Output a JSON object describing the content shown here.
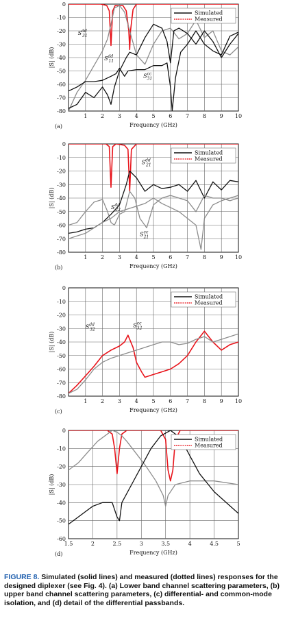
{
  "figure": {
    "caption_lead": "FIGURE 8.",
    "caption_body": "Simulated (solid lines) and measured (dotted lines) responses for the designed diplexer (see Fig. 4). (a) Lower band channel scattering parameters, (b) upper band channel scattering parameters, (c) differential- and common-mode isolation, and (d) detail of the differential passbands."
  },
  "colors": {
    "black": "#111111",
    "gray": "#8c8c8c",
    "red": "#e8141b",
    "grid": "#666666"
  },
  "chart_data": [
    {
      "type": "line",
      "panel_label": "(a)",
      "xlabel": "Frequency (GHz)",
      "ylabel": "|S| (dB)",
      "xlim": [
        0,
        10
      ],
      "ylim": [
        -80,
        0
      ],
      "xticks": [
        1,
        2,
        3,
        4,
        5,
        6,
        7,
        8,
        9,
        10
      ],
      "yticks": [
        0,
        -10,
        -20,
        -30,
        -40,
        -50,
        -60,
        -70,
        -80
      ],
      "grid": true,
      "legend": [
        "Simulated",
        "Measured"
      ],
      "legend_position": "top-right",
      "annotations": [
        {
          "text": "S",
          "sub": "31",
          "sup": "dd",
          "x": 0.55,
          "y": -23
        },
        {
          "text": "S",
          "sub": "11",
          "sup": "dd",
          "x": 2.1,
          "y": -42
        },
        {
          "text": "S",
          "sub": "31",
          "sup": "cc",
          "x": 4.4,
          "y": -55
        }
      ],
      "series": [
        {
          "color": "red",
          "style": "solid",
          "x": [
            0,
            1.9,
            2.25,
            2.4,
            2.5,
            2.6,
            2.75,
            3.2,
            3.4,
            3.55,
            3.6,
            3.65,
            3.8,
            4,
            10
          ],
          "y": [
            0,
            0,
            -1,
            -5,
            -31,
            -5,
            -1,
            -1,
            -5,
            -20,
            -34,
            -20,
            -4,
            0,
            0
          ]
        },
        {
          "color": "gray",
          "style": "solid",
          "x": [
            0,
            0.5,
            1,
            1.5,
            2,
            2.3,
            2.5,
            2.7,
            3,
            3.3,
            3.6,
            4,
            4.5,
            5,
            5.5,
            6,
            6.5,
            7,
            7.5,
            8,
            8.5,
            9,
            9.5,
            10
          ],
          "y": [
            -80,
            -66,
            -57,
            -46,
            -35,
            -26,
            -15,
            -3,
            -1,
            -6,
            -20,
            -38,
            -45,
            -30,
            -20,
            -18,
            -26,
            -22,
            -12,
            -25,
            -20,
            -35,
            -38,
            -32
          ]
        },
        {
          "color": "black",
          "style": "solid",
          "x": [
            0,
            0.5,
            1,
            1.5,
            2,
            2.3,
            2.5,
            2.7,
            3,
            3.4,
            3.6,
            4,
            4.5,
            5,
            5.5,
            5.8,
            6,
            6.2,
            6.5,
            7,
            7.5,
            8,
            8.5,
            9,
            9.5,
            10
          ],
          "y": [
            -78,
            -75,
            -66,
            -70,
            -62,
            -68,
            -75,
            -62,
            -50,
            -40,
            -36,
            -38,
            -25,
            -15,
            -18,
            -28,
            -44,
            -20,
            -18,
            -22,
            -30,
            -20,
            -28,
            -40,
            -30,
            -22
          ]
        },
        {
          "color": "black",
          "style": "solid",
          "x": [
            0,
            0.5,
            1,
            1.5,
            2,
            2.5,
            2.8,
            3,
            3.3,
            3.5,
            4,
            4.5,
            5,
            5.5,
            5.8,
            6,
            6.1,
            6.3,
            6.6,
            7,
            7.5,
            8,
            8.5,
            9,
            9.5,
            10
          ],
          "y": [
            -65,
            -62,
            -58,
            -58,
            -57,
            -54,
            -52,
            -48,
            -54,
            -50,
            -49,
            -49,
            -46,
            -46,
            -44,
            -62,
            -80,
            -55,
            -36,
            -30,
            -20,
            -30,
            -35,
            -38,
            -24,
            -21
          ]
        }
      ]
    },
    {
      "type": "line",
      "panel_label": "(b)",
      "xlabel": "Frequency (GHz)",
      "ylabel": "|S| (dB)",
      "xlim": [
        0,
        10
      ],
      "ylim": [
        -80,
        0
      ],
      "xticks": [
        1,
        2,
        3,
        4,
        5,
        6,
        7,
        8,
        9,
        10
      ],
      "yticks": [
        0,
        -10,
        -20,
        -30,
        -40,
        -50,
        -60,
        -70,
        -80
      ],
      "grid": true,
      "legend": [
        "Simulated",
        "Measured"
      ],
      "legend_position": "top-right",
      "annotations": [
        {
          "text": "S",
          "sub": "21",
          "sup": "dd",
          "x": 4.3,
          "y": -15
        },
        {
          "text": "S",
          "sub": "22",
          "sup": "dd",
          "x": 2.5,
          "y": -48
        },
        {
          "text": "S",
          "sub": "21",
          "sup": "cc",
          "x": 4.2,
          "y": -68
        }
      ],
      "series": [
        {
          "color": "red",
          "style": "solid",
          "x": [
            0,
            2.2,
            2.4,
            2.5,
            2.6,
            2.8,
            3.3,
            3.5,
            3.6,
            3.7,
            4,
            10
          ],
          "y": [
            0,
            0,
            -2,
            -32,
            -2,
            0,
            -1,
            -4,
            -35,
            -4,
            0,
            0
          ]
        },
        {
          "color": "black",
          "style": "solid",
          "x": [
            0,
            0.5,
            1,
            1.5,
            2,
            2.5,
            3,
            3.4,
            3.6,
            4,
            4.5,
            5,
            5.5,
            6,
            6.5,
            7,
            7.5,
            8,
            8.5,
            9,
            9.5,
            10
          ],
          "y": [
            -66,
            -65,
            -63,
            -62,
            -58,
            -52,
            -45,
            -30,
            -20,
            -25,
            -35,
            -30,
            -33,
            -32,
            -30,
            -35,
            -27,
            -40,
            -28,
            -34,
            -27,
            -28
          ]
        },
        {
          "color": "gray",
          "style": "solid",
          "x": [
            0,
            0.5,
            1,
            1.5,
            2,
            2.3,
            2.5,
            2.7,
            3,
            3.3,
            3.6,
            3.9,
            4.2,
            4.6,
            5,
            5.5,
            6,
            6.5,
            7,
            7.5,
            8,
            8.5,
            9,
            9.5,
            10
          ],
          "y": [
            -60,
            -58,
            -50,
            -43,
            -41,
            -50,
            -58,
            -60,
            -52,
            -50,
            -35,
            -40,
            -55,
            -62,
            -45,
            -40,
            -38,
            -40,
            -42,
            -50,
            -38,
            -40,
            -40,
            -42,
            -40
          ]
        },
        {
          "color": "gray",
          "style": "solid",
          "x": [
            0,
            0.5,
            1,
            1.5,
            2,
            2.5,
            3,
            3.5,
            4,
            4.5,
            5,
            5.5,
            6,
            6.5,
            7,
            7.5,
            7.8,
            8,
            8.5,
            9,
            9.5,
            10
          ],
          "y": [
            -70,
            -68,
            -66,
            -62,
            -58,
            -55,
            -50,
            -48,
            -46,
            -44,
            -40,
            -44,
            -47,
            -50,
            -55,
            -60,
            -78,
            -55,
            -45,
            -42,
            -40,
            -38
          ]
        }
      ]
    },
    {
      "type": "line",
      "panel_label": "(c)",
      "xlabel": "Frequency (GHz)",
      "ylabel": "|S| (dB)",
      "xlim": [
        0,
        10
      ],
      "ylim": [
        -80,
        0
      ],
      "xticks": [
        1,
        2,
        3,
        4,
        5,
        6,
        7,
        8,
        9,
        10
      ],
      "yticks": [
        0,
        -10,
        -20,
        -30,
        -40,
        -50,
        -60,
        -70,
        -80
      ],
      "grid": true,
      "legend": [
        "Simulated",
        "Measured"
      ],
      "legend_position": "top-right",
      "annotations": [
        {
          "text": "S",
          "sub": "32",
          "sup": "dd",
          "x": 1.0,
          "y": -30
        },
        {
          "text": "S",
          "sub": "32",
          "sup": "cc",
          "x": 3.8,
          "y": -29
        }
      ],
      "series": [
        {
          "color": "red",
          "style": "solid",
          "x": [
            0,
            0.5,
            1,
            1.5,
            2,
            2.5,
            3,
            3.3,
            3.5,
            3.8,
            4,
            4.3,
            4.5,
            5,
            5.5,
            6,
            6.5,
            7,
            7.5,
            8,
            8.5,
            9,
            9.5,
            10
          ],
          "y": [
            -78,
            -72,
            -65,
            -58,
            -50,
            -46,
            -43,
            -40,
            -35,
            -44,
            -55,
            -62,
            -66,
            -64,
            -62,
            -60,
            -56,
            -50,
            -40,
            -32,
            -40,
            -46,
            -42,
            -40
          ]
        },
        {
          "color": "gray",
          "style": "solid",
          "x": [
            0,
            0.5,
            1,
            1.5,
            2,
            2.5,
            3,
            3.5,
            4,
            4.5,
            5,
            5.5,
            6,
            6.5,
            7,
            7.5,
            8,
            8.5,
            9,
            9.5,
            10
          ],
          "y": [
            -78,
            -75,
            -68,
            -60,
            -55,
            -52,
            -50,
            -48,
            -46,
            -44,
            -42,
            -40,
            -40,
            -42,
            -41,
            -38,
            -36,
            -40,
            -38,
            -36,
            -34
          ]
        }
      ]
    },
    {
      "type": "line",
      "panel_label": "(d)",
      "xlabel": "Frequency (GHz)",
      "ylabel": "|S| (dB)",
      "xlim": [
        1.5,
        5
      ],
      "ylim": [
        -60,
        0
      ],
      "xticks": [
        1.5,
        2,
        2.5,
        3,
        3.5,
        4,
        4.5,
        5
      ],
      "yticks": [
        0,
        -10,
        -20,
        -30,
        -40,
        -50,
        -60
      ],
      "grid": true,
      "legend": [
        "Simulated",
        "Measured"
      ],
      "legend_position": "top-right",
      "annotations": [],
      "series": [
        {
          "color": "red",
          "style": "solid",
          "x": [
            1.5,
            2,
            2.3,
            2.4,
            2.45,
            2.5,
            2.55,
            2.6,
            2.7,
            3,
            3.4,
            3.5,
            3.55,
            3.6,
            3.65,
            3.7,
            3.8,
            4.2,
            5
          ],
          "y": [
            0,
            0,
            0,
            -2,
            -10,
            -24,
            -10,
            -2,
            0,
            0,
            0,
            -5,
            -22,
            -28,
            -22,
            -5,
            0,
            0,
            0
          ]
        },
        {
          "color": "gray",
          "style": "solid",
          "x": [
            1.5,
            1.7,
            1.9,
            2.1,
            2.3,
            2.4,
            2.5,
            2.6,
            2.7,
            2.9,
            3.1,
            3.3,
            3.45,
            3.5,
            3.55,
            3.7,
            4,
            4.5,
            5
          ],
          "y": [
            -22,
            -18,
            -12,
            -6,
            -2,
            0,
            -1,
            -3,
            -6,
            -13,
            -20,
            -28,
            -36,
            -42,
            -36,
            -30,
            -28,
            -28,
            -30
          ]
        },
        {
          "color": "black",
          "style": "solid",
          "x": [
            1.5,
            1.7,
            2,
            2.2,
            2.4,
            2.5,
            2.55,
            2.6,
            2.8,
            3,
            3.2,
            3.4,
            3.6,
            3.8,
            4,
            4.2,
            4.5,
            5
          ],
          "y": [
            -52,
            -48,
            -42,
            -40,
            -40,
            -48,
            -50,
            -40,
            -30,
            -20,
            -10,
            -3,
            0,
            -4,
            -14,
            -24,
            -34,
            -46
          ]
        }
      ]
    }
  ]
}
